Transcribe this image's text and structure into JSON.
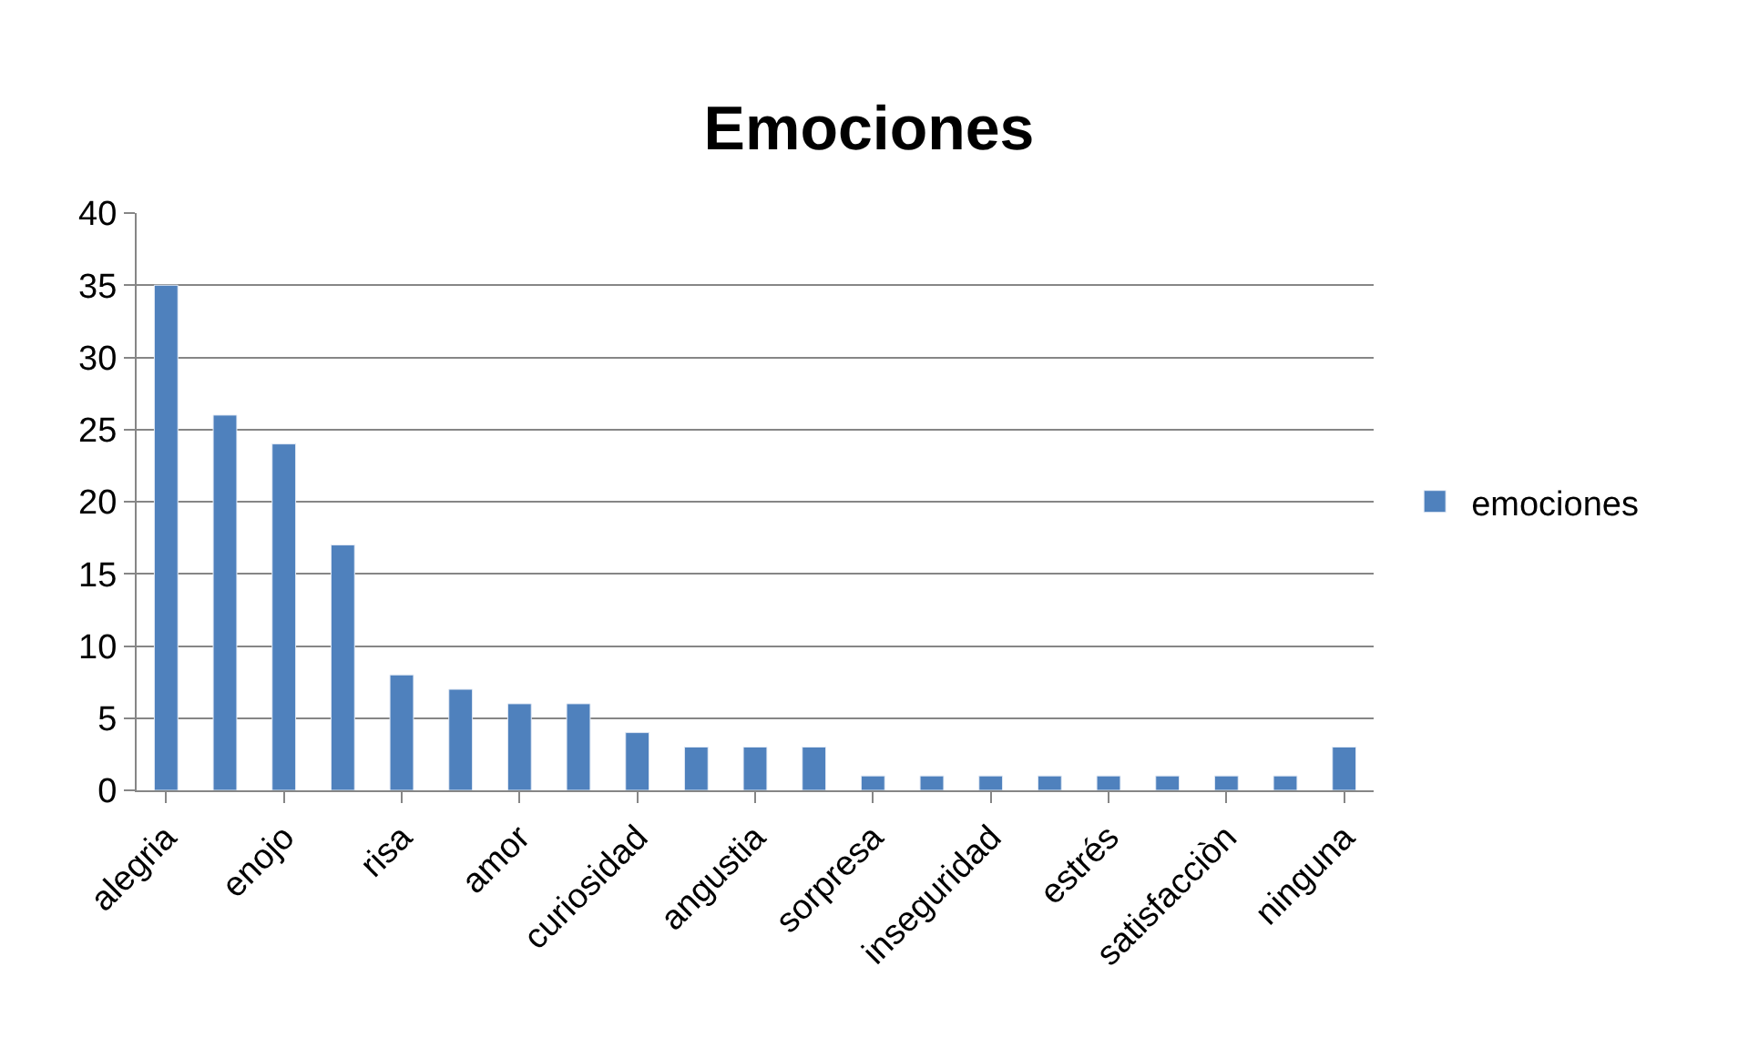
{
  "chart_data": {
    "type": "bar",
    "title": "Emociones",
    "categories": [
      "alegria",
      null,
      "enojo",
      null,
      "risa",
      null,
      "amor",
      null,
      "curiosidad",
      null,
      "angustia",
      null,
      "sorpresa",
      null,
      "inseguridad",
      null,
      "estrés",
      null,
      "satisfacciòn",
      null,
      "ninguna"
    ],
    "series": [
      {
        "name": "emociones",
        "color": "#4f81bd",
        "values": [
          35,
          26,
          24,
          17,
          8,
          7,
          6,
          6,
          4,
          3,
          3,
          3,
          1,
          1,
          1,
          1,
          1,
          1,
          1,
          1,
          3
        ]
      }
    ],
    "ylim": [
      0,
      40
    ],
    "yticks": [
      0,
      5,
      10,
      15,
      20,
      25,
      30,
      35,
      40
    ],
    "grid": "y",
    "legend": "right"
  }
}
